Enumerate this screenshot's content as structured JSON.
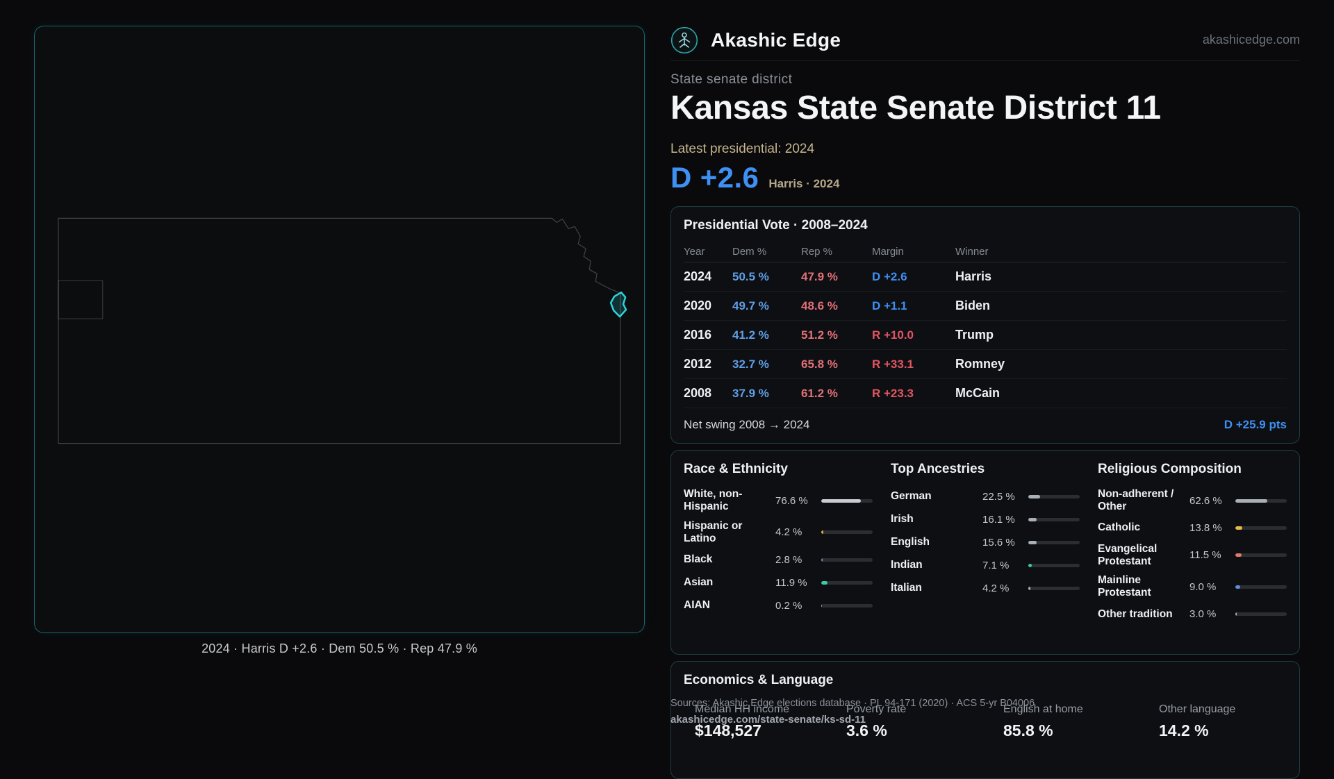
{
  "header": {
    "brand": "Akashic Edge",
    "site": "akashicedge.com",
    "kicker": "State senate district",
    "title": "Kansas State Senate District 11",
    "latest_label": "Latest presidential: 2024",
    "headline_margin": "D +2.6",
    "headline_sub": "Harris · 2024"
  },
  "colors": {
    "accent_teal": "#2dd4da",
    "dem_blue": "#3f90f4",
    "rep_red": "#e25663",
    "tan": "#c6b48e"
  },
  "map": {
    "caption": "2024 · Harris D +2.6 · Dem 50.5 % · Rep 47.9 %"
  },
  "vote_table": {
    "title": "Presidential Vote · 2008–2024",
    "columns": [
      "Year",
      "Dem %",
      "Rep %",
      "Margin",
      "Winner"
    ],
    "rows": [
      {
        "year": "2024",
        "dem": "50.5 %",
        "rep": "47.9 %",
        "margin": "D +2.6",
        "winner": "Harris",
        "margin_color": "#3f90f4"
      },
      {
        "year": "2020",
        "dem": "49.7 %",
        "rep": "48.6 %",
        "margin": "D +1.1",
        "winner": "Biden",
        "margin_color": "#3f90f4"
      },
      {
        "year": "2016",
        "dem": "41.2 %",
        "rep": "51.2 %",
        "margin": "R +10.0",
        "winner": "Trump",
        "margin_color": "#e25663"
      },
      {
        "year": "2012",
        "dem": "32.7 %",
        "rep": "65.8 %",
        "margin": "R +33.1",
        "winner": "Romney",
        "margin_color": "#e25663"
      },
      {
        "year": "2008",
        "dem": "37.9 %",
        "rep": "61.2 %",
        "margin": "R +23.3",
        "winner": "McCain",
        "margin_color": "#e25663"
      }
    ],
    "footer_label": "Net swing 2008 → 2024",
    "footer_value": "D +25.9 pts"
  },
  "demographics": {
    "race": {
      "title": "Race & Ethnicity",
      "rows": [
        {
          "label": "White, non-Hispanic",
          "value": "76.6 %",
          "pct": 76.6,
          "color": "#c9cdd3"
        },
        {
          "label": "Hispanic or Latino",
          "value": "4.2 %",
          "pct": 4.2,
          "color": "#e2a43f"
        },
        {
          "label": "Black",
          "value": "2.8 %",
          "pct": 2.8,
          "color": "#5f8fdc"
        },
        {
          "label": "Asian",
          "value": "11.9 %",
          "pct": 11.9,
          "color": "#3dc9a6"
        },
        {
          "label": "AIAN",
          "value": "0.2 %",
          "pct": 0.2,
          "color": "#9aa0a8"
        }
      ]
    },
    "ancestries": {
      "title": "Top Ancestries",
      "rows": [
        {
          "label": "German",
          "value": "22.5 %",
          "pct": 22.5,
          "color": "#aab0b7"
        },
        {
          "label": "Irish",
          "value": "16.1 %",
          "pct": 16.1,
          "color": "#aab0b7"
        },
        {
          "label": "English",
          "value": "15.6 %",
          "pct": 15.6,
          "color": "#aab0b7"
        },
        {
          "label": "Indian",
          "value": "7.1 %",
          "pct": 7.1,
          "color": "#3dc9a6"
        },
        {
          "label": "Italian",
          "value": "4.2 %",
          "pct": 4.2,
          "color": "#aab0b7"
        }
      ]
    },
    "religion": {
      "title": "Religious Composition",
      "rows": [
        {
          "label": "Non-adherent / Other",
          "value": "62.6 %",
          "pct": 62.6,
          "color": "#aab0b7"
        },
        {
          "label": "Catholic",
          "value": "13.8 %",
          "pct": 13.8,
          "color": "#e5b84b"
        },
        {
          "label": "Evangelical Protestant",
          "value": "11.5 %",
          "pct": 11.5,
          "color": "#e0796a"
        },
        {
          "label": "Mainline Protestant",
          "value": "9.0 %",
          "pct": 9.0,
          "color": "#5f8fdc"
        },
        {
          "label": "Other tradition",
          "value": "3.0 %",
          "pct": 3.0,
          "color": "#aab0b7"
        }
      ]
    }
  },
  "economics": {
    "title": "Economics & Language",
    "stats": [
      {
        "label": "Median HH income",
        "value": "$148,527"
      },
      {
        "label": "Poverty rate",
        "value": "3.6 %"
      },
      {
        "label": "English at home",
        "value": "85.8 %"
      },
      {
        "label": "Other language",
        "value": "14.2 %"
      }
    ]
  },
  "footer": {
    "sources": "Sources: Akashic Edge elections database · PL 94-171 (2020) · ACS 5-yr B04006",
    "permalink": "akashicedge.com/state-senate/ks-sd-11"
  },
  "chart_data": [
    {
      "type": "table",
      "title": "Presidential Vote · 2008–2024",
      "columns": [
        "Year",
        "Dem %",
        "Rep %",
        "Margin",
        "Winner"
      ],
      "rows": [
        [
          "2024",
          50.5,
          47.9,
          "D +2.6",
          "Harris"
        ],
        [
          "2020",
          49.7,
          48.6,
          "D +1.1",
          "Biden"
        ],
        [
          "2016",
          41.2,
          51.2,
          "R +10.0",
          "Trump"
        ],
        [
          "2012",
          32.7,
          65.8,
          "R +33.1",
          "Romney"
        ],
        [
          "2008",
          37.9,
          61.2,
          "R +23.3",
          "McCain"
        ]
      ],
      "footnote": "Net swing 2008 → 2024: D +25.9 pts"
    },
    {
      "type": "bar",
      "orientation": "horizontal",
      "title": "Race & Ethnicity",
      "unit": "%",
      "xlim": [
        0,
        100
      ],
      "categories": [
        "White, non-Hispanic",
        "Hispanic or Latino",
        "Black",
        "Asian",
        "AIAN"
      ],
      "values": [
        76.6,
        4.2,
        2.8,
        11.9,
        0.2
      ]
    },
    {
      "type": "bar",
      "orientation": "horizontal",
      "title": "Top Ancestries",
      "unit": "%",
      "xlim": [
        0,
        100
      ],
      "categories": [
        "German",
        "Irish",
        "English",
        "Indian",
        "Italian"
      ],
      "values": [
        22.5,
        16.1,
        15.6,
        7.1,
        4.2
      ]
    },
    {
      "type": "bar",
      "orientation": "horizontal",
      "title": "Religious Composition",
      "unit": "%",
      "xlim": [
        0,
        100
      ],
      "categories": [
        "Non-adherent / Other",
        "Catholic",
        "Evangelical Protestant",
        "Mainline Protestant",
        "Other tradition"
      ],
      "values": [
        62.6,
        13.8,
        11.5,
        9.0,
        3.0
      ]
    },
    {
      "type": "table",
      "title": "Economics & Language",
      "columns": [
        "Median HH income",
        "Poverty rate",
        "English at home",
        "Other language"
      ],
      "rows": [
        [
          "$148,527",
          "3.6 %",
          "85.8 %",
          "14.2 %"
        ]
      ]
    }
  ]
}
